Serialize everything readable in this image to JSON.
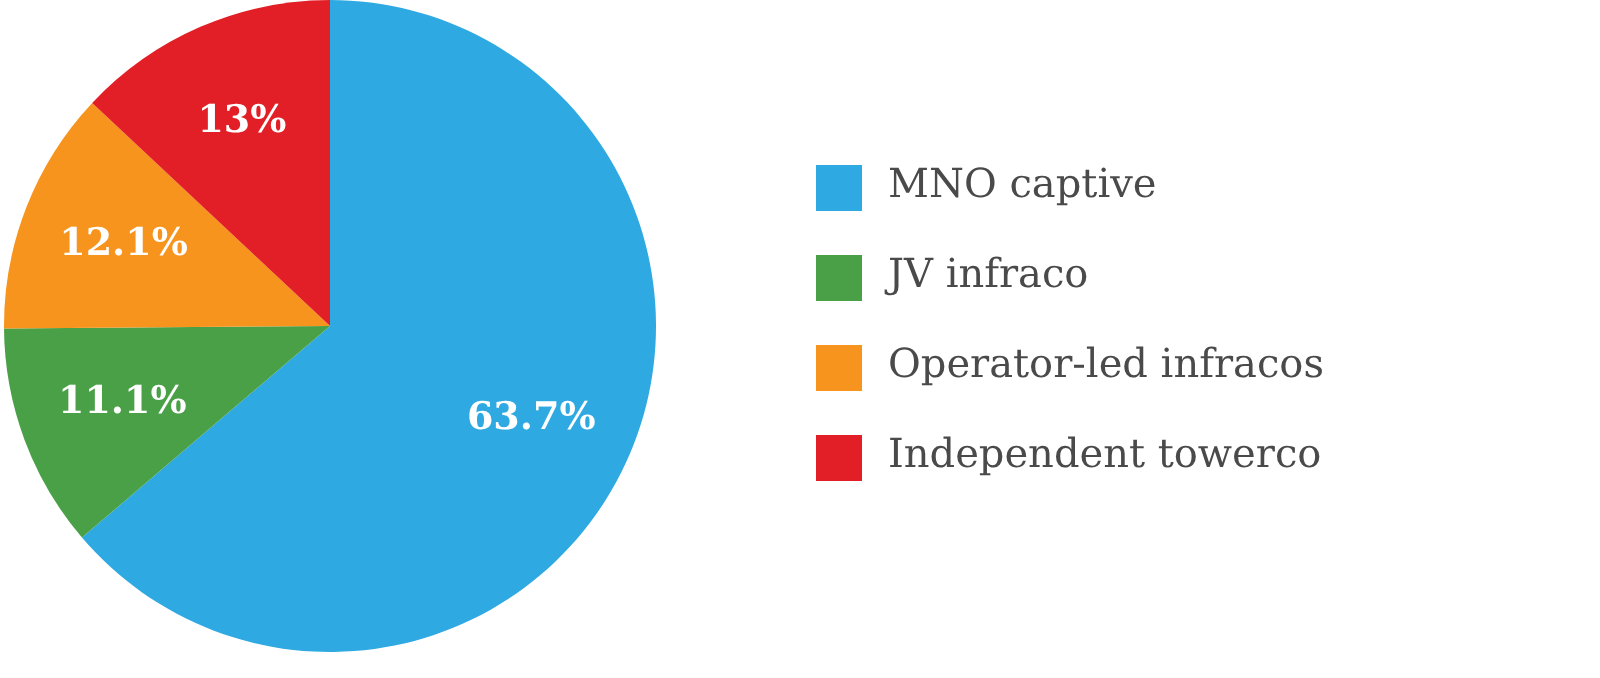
{
  "chart_data": {
    "type": "pie",
    "categories": [
      "MNO captive",
      "JV infraco",
      "Operator-led infracos",
      "Independent towerco"
    ],
    "values": [
      63.7,
      11.1,
      12.1,
      13
    ],
    "colors": [
      "#2ea9e1",
      "#4aa047",
      "#f7941d",
      "#e21f26"
    ],
    "value_labels": [
      "63.7%",
      "11.1%",
      "12.1%",
      "13%"
    ],
    "legend": "right"
  }
}
